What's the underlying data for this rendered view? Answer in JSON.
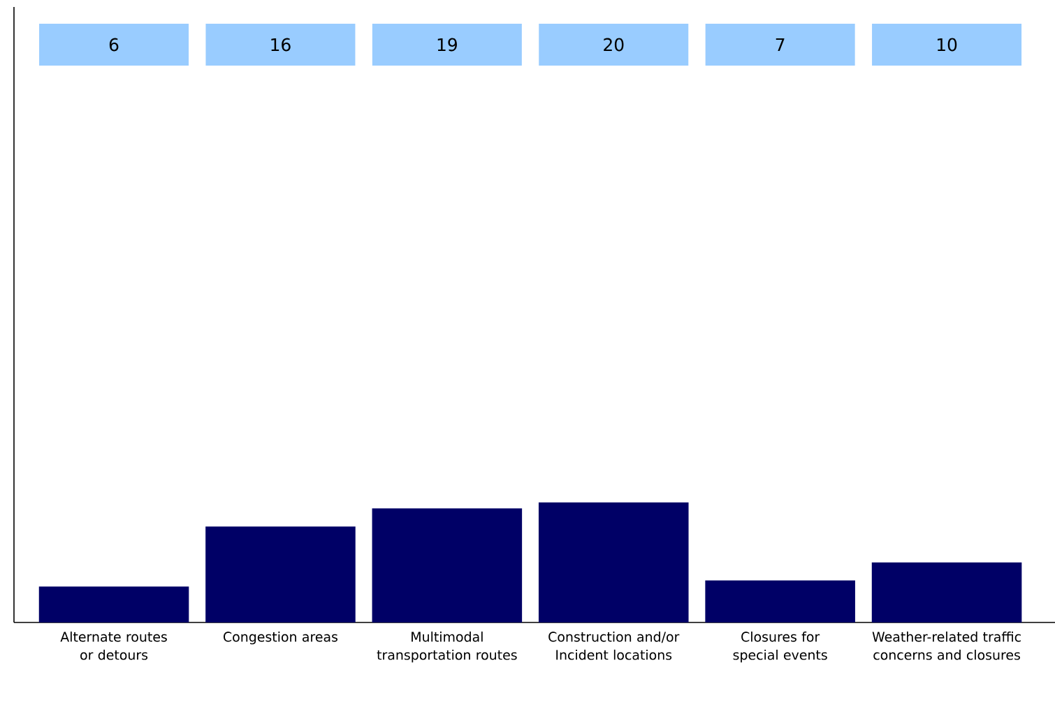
{
  "chart_data": {
    "type": "bar",
    "categories": [
      "Alternate routes or detours",
      "Congestion areas",
      "Multimodal transportation routes",
      "Construction and/or Incident locations",
      "Closures for special events",
      "Weather-related traffic concerns and closures"
    ],
    "values": [
      6,
      16,
      19,
      20,
      7,
      10
    ],
    "color": "#000066",
    "data_labels": true
  }
}
